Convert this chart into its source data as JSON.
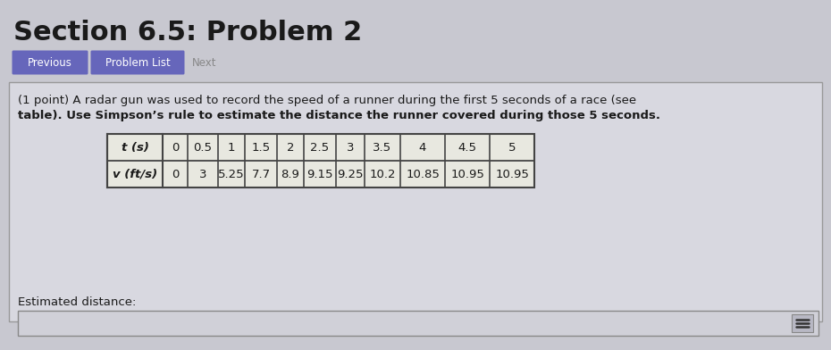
{
  "title": "Section 6.5: Problem 2",
  "title_fontsize": 22,
  "bg_color": "#c8c8d0",
  "button_previous_text": "Previous",
  "button_problem_list_text": "Problem List",
  "button_next_text": "Next",
  "button_color": "#6666bb",
  "button_text_color": "#ffffff",
  "problem_text_line1": "(1 point) A radar gun was used to record the speed of a runner during the first 5 seconds of a race (see",
  "problem_text_line2": "table). Use Simpson’s rule to estimate the distance the runner covered during those 5 seconds.",
  "t_label": "t (s)",
  "v_label": "v (ft/s)",
  "t_values": [
    "0",
    "0.5",
    "1",
    "1.5",
    "2",
    "2.5",
    "3",
    "3.5",
    "4",
    "4.5",
    "5"
  ],
  "v_values": [
    "0",
    "3",
    "5.25",
    "7.7",
    "8.9",
    "9.15",
    "9.25",
    "10.2",
    "10.85",
    "10.95",
    "10.95"
  ],
  "estimated_distance_label": "Estimated distance:",
  "table_bg": "#e8e8e0",
  "table_border_color": "#444444",
  "text_color": "#1a1a1a",
  "next_text_color": "#888888",
  "problem_box_bg": "#d8d8e0",
  "problem_box_border": "#999999",
  "answer_box_bg": "#d0d0d8",
  "answer_box_border": "#888888",
  "answer_icon_color": "#333333"
}
